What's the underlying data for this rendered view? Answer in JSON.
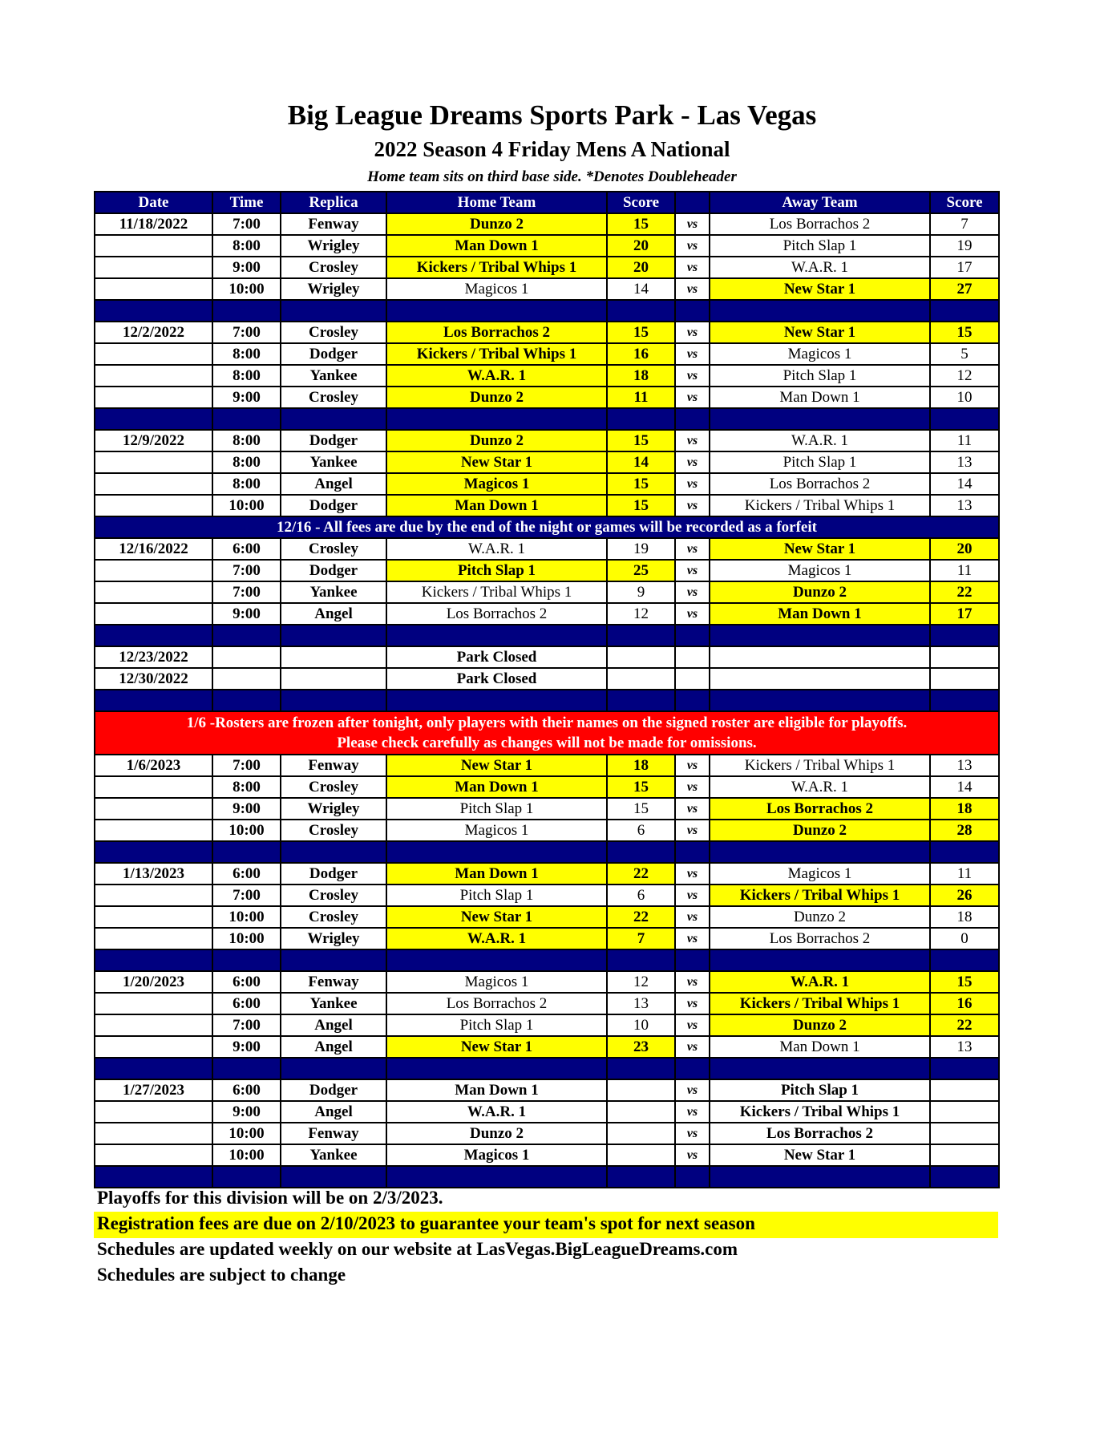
{
  "header": {
    "title": "Big League Dreams Sports Park - Las Vegas",
    "subtitle": "2022 Season 4 Friday Mens A National",
    "note": "Home team sits on third base side.  *Denotes Doubleheader"
  },
  "colors": {
    "header_bg": "#000080",
    "winner_highlight": "#ffff00",
    "alert_bg": "#ff0000"
  },
  "columns": [
    "Date",
    "Time",
    "Replica",
    "Home Team",
    "Score",
    "",
    "Away Team",
    "Score"
  ],
  "vs_label": "vs",
  "rows": [
    {
      "type": "game",
      "date": "11/18/2022",
      "time": "7:00",
      "field": "Fenway",
      "home": "Dunzo 2",
      "hs": "15",
      "away": "Los Borrachos 2",
      "as": "7",
      "win": "home"
    },
    {
      "type": "game",
      "date": "",
      "time": "8:00",
      "field": "Wrigley",
      "home": "Man Down 1",
      "hs": "20",
      "away": "Pitch Slap 1",
      "as": "19",
      "win": "home"
    },
    {
      "type": "game",
      "date": "",
      "time": "9:00",
      "field": "Crosley",
      "home": "Kickers / Tribal Whips 1",
      "hs": "20",
      "away": "W.A.R. 1",
      "as": "17",
      "win": "home"
    },
    {
      "type": "game",
      "date": "",
      "time": "10:00",
      "field": "Wrigley",
      "home": "Magicos 1",
      "hs": "14",
      "away": "New Star 1",
      "as": "27",
      "win": "away"
    },
    {
      "type": "sep"
    },
    {
      "type": "game",
      "date": "12/2/2022",
      "time": "7:00",
      "field": "Crosley",
      "home": "Los Borrachos 2",
      "hs": "15",
      "away": "New Star 1",
      "as": "15",
      "win": "both"
    },
    {
      "type": "game",
      "date": "",
      "time": "8:00",
      "field": "Dodger",
      "home": "Kickers / Tribal Whips 1",
      "hs": "16",
      "away": "Magicos 1",
      "as": "5",
      "win": "home"
    },
    {
      "type": "game",
      "date": "",
      "time": "8:00",
      "field": "Yankee",
      "home": "W.A.R. 1",
      "hs": "18",
      "away": "Pitch Slap 1",
      "as": "12",
      "win": "home"
    },
    {
      "type": "game",
      "date": "",
      "time": "9:00",
      "field": "Crosley",
      "home": "Dunzo 2",
      "hs": "11",
      "away": "Man Down 1",
      "as": "10",
      "win": "home"
    },
    {
      "type": "sep"
    },
    {
      "type": "game",
      "date": "12/9/2022",
      "time": "8:00",
      "field": "Dodger",
      "home": "Dunzo 2",
      "hs": "15",
      "away": "W.A.R. 1",
      "as": "11",
      "win": "home"
    },
    {
      "type": "game",
      "date": "",
      "time": "8:00",
      "field": "Yankee",
      "home": "New Star 1",
      "hs": "14",
      "away": "Pitch Slap 1",
      "as": "13",
      "win": "home"
    },
    {
      "type": "game",
      "date": "",
      "time": "8:00",
      "field": "Angel",
      "home": "Magicos 1",
      "hs": "15",
      "away": "Los Borrachos 2",
      "as": "14",
      "win": "home"
    },
    {
      "type": "game",
      "date": "",
      "time": "10:00",
      "field": "Dodger",
      "home": "Man Down 1",
      "hs": "15",
      "away": "Kickers / Tribal Whips 1",
      "as": "13",
      "win": "home"
    },
    {
      "type": "notice",
      "text": "12/16 - All fees are due by the end of the night or games will be recorded as a forfeit"
    },
    {
      "type": "game",
      "date": "12/16/2022",
      "time": "6:00",
      "field": "Crosley",
      "home": "W.A.R. 1",
      "hs": "19",
      "away": "New Star 1",
      "as": "20",
      "win": "away"
    },
    {
      "type": "game",
      "date": "",
      "time": "7:00",
      "field": "Dodger",
      "home": "Pitch Slap 1",
      "hs": "25",
      "away": "Magicos 1",
      "as": "11",
      "win": "home"
    },
    {
      "type": "game",
      "date": "",
      "time": "7:00",
      "field": "Yankee",
      "home": "Kickers / Tribal Whips 1",
      "hs": "9",
      "away": "Dunzo 2",
      "as": "22",
      "win": "away"
    },
    {
      "type": "game",
      "date": "",
      "time": "9:00",
      "field": "Angel",
      "home": "Los Borrachos 2",
      "hs": "12",
      "away": "Man Down 1",
      "as": "17",
      "win": "away"
    },
    {
      "type": "sep"
    },
    {
      "type": "closed",
      "date": "12/23/2022",
      "text": "Park Closed"
    },
    {
      "type": "closed",
      "date": "12/30/2022",
      "text": "Park Closed"
    },
    {
      "type": "sep"
    },
    {
      "type": "red",
      "line1": "1/6 -Rosters are frozen after tonight, only players with their names on the signed roster are eligible for playoffs.",
      "line2": "Please check carefully as changes will not be made for omissions."
    },
    {
      "type": "game",
      "date": "1/6/2023",
      "time": "7:00",
      "field": "Fenway",
      "home": "New Star 1",
      "hs": "18",
      "away": "Kickers / Tribal Whips 1",
      "as": "13",
      "win": "home"
    },
    {
      "type": "game",
      "date": "",
      "time": "8:00",
      "field": "Crosley",
      "home": "Man Down 1",
      "hs": "15",
      "away": "W.A.R. 1",
      "as": "14",
      "win": "home"
    },
    {
      "type": "game",
      "date": "",
      "time": "9:00",
      "field": "Wrigley",
      "home": "Pitch Slap 1",
      "hs": "15",
      "away": "Los Borrachos 2",
      "as": "18",
      "win": "away"
    },
    {
      "type": "game",
      "date": "",
      "time": "10:00",
      "field": "Crosley",
      "home": "Magicos 1",
      "hs": "6",
      "away": "Dunzo 2",
      "as": "28",
      "win": "away"
    },
    {
      "type": "sep"
    },
    {
      "type": "game",
      "date": "1/13/2023",
      "time": "6:00",
      "field": "Dodger",
      "home": "Man Down 1",
      "hs": "22",
      "away": "Magicos 1",
      "as": "11",
      "win": "home"
    },
    {
      "type": "game",
      "date": "",
      "time": "7:00",
      "field": "Crosley",
      "home": "Pitch Slap 1",
      "hs": "6",
      "away": "Kickers / Tribal Whips 1",
      "as": "26",
      "win": "away"
    },
    {
      "type": "game",
      "date": "",
      "time": "10:00",
      "field": "Crosley",
      "home": "New Star 1",
      "hs": "22",
      "away": "Dunzo 2",
      "as": "18",
      "win": "home"
    },
    {
      "type": "game",
      "date": "",
      "time": "10:00",
      "field": "Wrigley",
      "home": "W.A.R. 1",
      "hs": "7",
      "away": "Los Borrachos 2",
      "as": "0",
      "win": "home"
    },
    {
      "type": "sep"
    },
    {
      "type": "game",
      "date": "1/20/2023",
      "time": "6:00",
      "field": "Fenway",
      "home": "Magicos 1",
      "hs": "12",
      "away": "W.A.R. 1",
      "as": "15",
      "win": "away"
    },
    {
      "type": "game",
      "date": "",
      "time": "6:00",
      "field": "Yankee",
      "home": "Los Borrachos 2",
      "hs": "13",
      "away": "Kickers / Tribal Whips 1",
      "as": "16",
      "win": "away"
    },
    {
      "type": "game",
      "date": "",
      "time": "7:00",
      "field": "Angel",
      "home": "Pitch Slap 1",
      "hs": "10",
      "away": "Dunzo 2",
      "as": "22",
      "win": "away"
    },
    {
      "type": "game",
      "date": "",
      "time": "9:00",
      "field": "Angel",
      "home": "New Star 1",
      "hs": "23",
      "away": "Man Down 1",
      "as": "13",
      "win": "home"
    },
    {
      "type": "sep"
    },
    {
      "type": "game",
      "date": "1/27/2023",
      "time": "6:00",
      "field": "Dodger",
      "home": "Man Down 1",
      "hs": "",
      "away": "Pitch Slap 1",
      "as": "",
      "win": "none"
    },
    {
      "type": "game",
      "date": "",
      "time": "9:00",
      "field": "Angel",
      "home": "W.A.R. 1",
      "hs": "",
      "away": "Kickers / Tribal Whips 1",
      "as": "",
      "win": "none"
    },
    {
      "type": "game",
      "date": "",
      "time": "10:00",
      "field": "Fenway",
      "home": "Dunzo 2",
      "hs": "",
      "away": "Los Borrachos 2",
      "as": "",
      "win": "none"
    },
    {
      "type": "game",
      "date": "",
      "time": "10:00",
      "field": "Yankee",
      "home": "Magicos 1",
      "hs": "",
      "away": "New Star 1",
      "as": "",
      "win": "none"
    },
    {
      "type": "sep"
    }
  ],
  "footer": {
    "playoffs": "Playoffs for this division will be on 2/3/2023.",
    "registration": "Registration fees are due on 2/10/2023 to guarantee your team's spot for next season",
    "website": "Schedules are updated weekly on our website at LasVegas.BigLeagueDreams.com",
    "change": "Schedules are subject to change"
  }
}
